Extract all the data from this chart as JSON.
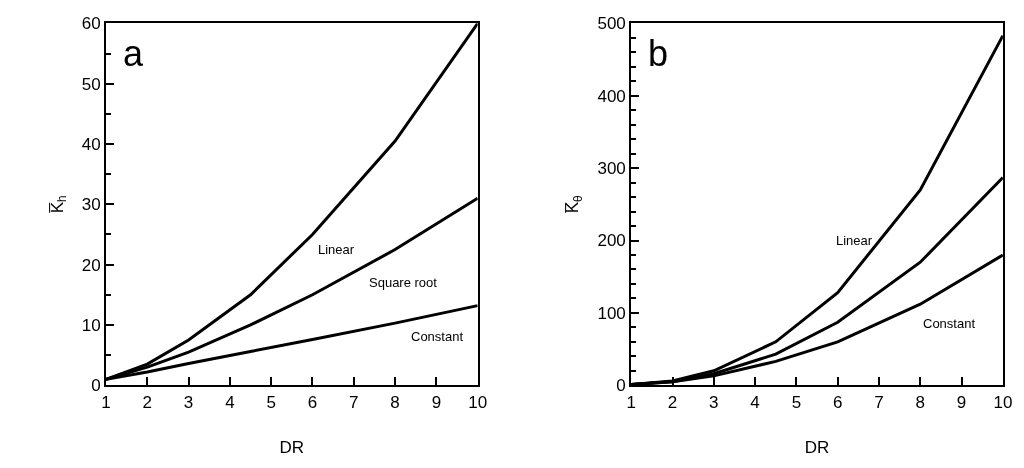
{
  "chart_data": [
    {
      "type": "line",
      "title": "a",
      "xlabel": "DR",
      "ylabel": "K̅$_{h}$",
      "x": [
        1,
        2,
        3,
        4.5,
        6,
        8,
        10
      ],
      "series": [
        {
          "color": "#000000",
          "values": [
            1,
            3.5,
            7.5,
            15,
            25,
            40.5,
            60
          ]
        },
        {
          "color": "#000000",
          "values": [
            1,
            3,
            5.5,
            10,
            15,
            22.5,
            31
          ]
        },
        {
          "color": "#000000",
          "values": [
            1,
            2.2,
            3.6,
            5.6,
            7.6,
            10.3,
            13.2
          ]
        }
      ],
      "annotations": [
        "Linear",
        "Square root",
        "Constant"
      ],
      "xlim": [
        1,
        10
      ],
      "xticks": [
        1,
        2,
        3,
        4,
        5,
        6,
        7,
        8,
        9,
        10
      ],
      "ylim": [
        0,
        60
      ],
      "yticks": [
        0,
        10,
        20,
        30,
        40,
        50,
        60
      ],
      "marker": "none",
      "line_style": "solid"
    },
    {
      "type": "line",
      "title": "b",
      "xlabel": "DR",
      "ylabel": "K̅$_{θ}$",
      "x": [
        1,
        2,
        3,
        4.5,
        6,
        8,
        10
      ],
      "series": [
        {
          "color": "#000000",
          "values": [
            1,
            6,
            20,
            60,
            128,
            270,
            483
          ]
        },
        {
          "color": "#000000",
          "values": [
            1,
            5,
            16,
            43,
            87,
            170,
            287
          ]
        },
        {
          "color": "#000000",
          "values": [
            1,
            5,
            13,
            33,
            60,
            112,
            180
          ]
        }
      ],
      "annotations": [
        "Linear",
        "Constant"
      ],
      "xlim": [
        1,
        10
      ],
      "xticks": [
        1,
        2,
        3,
        4,
        5,
        6,
        7,
        8,
        9,
        10
      ],
      "ylim": [
        0,
        500
      ],
      "yticks": [
        0,
        100,
        200,
        300,
        400,
        500
      ],
      "marker": "none",
      "line_style": "solid"
    }
  ]
}
